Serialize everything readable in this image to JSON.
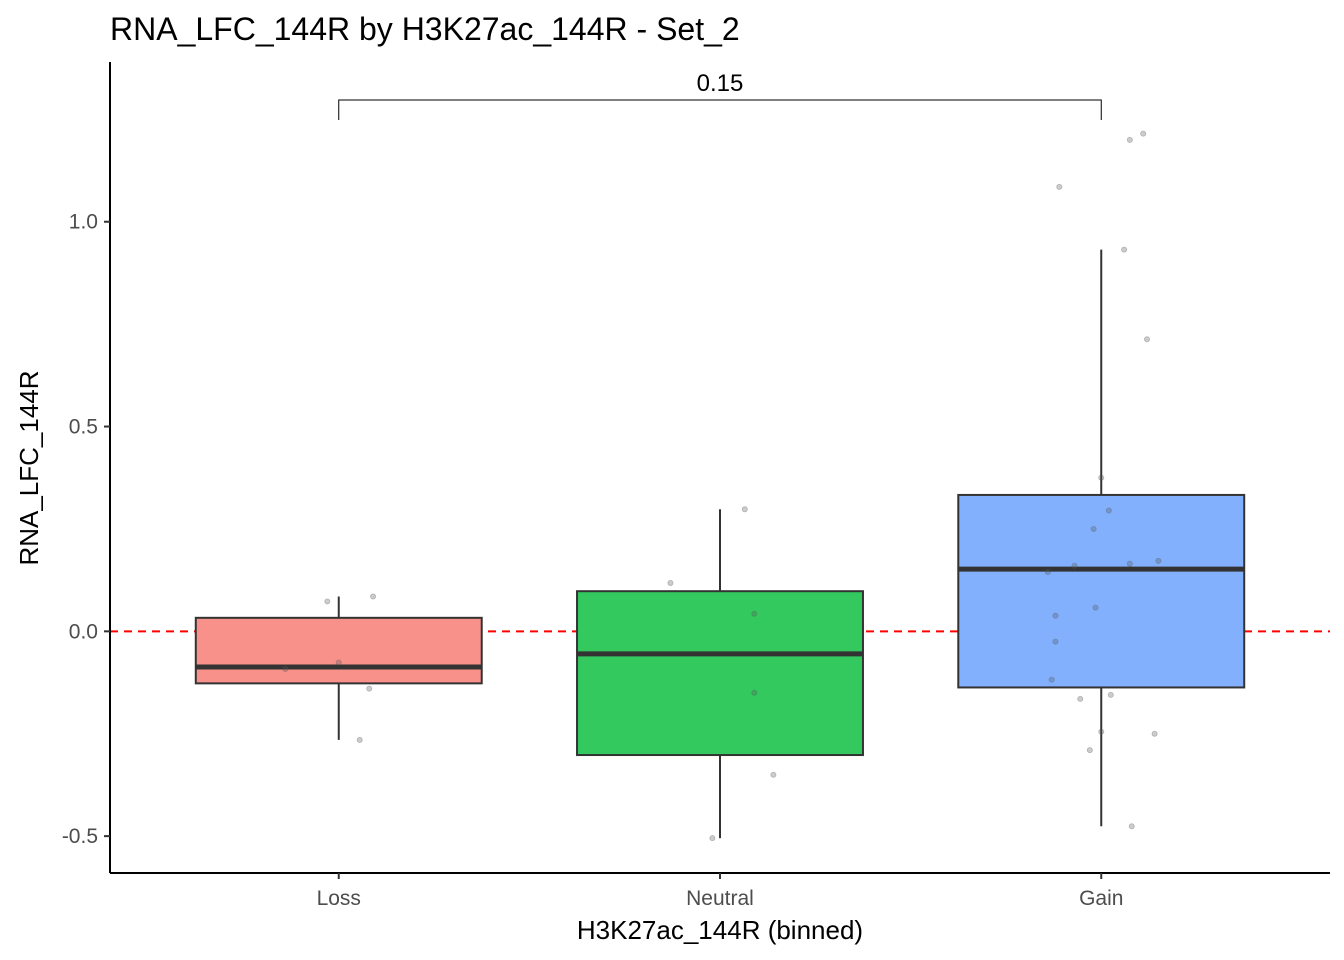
{
  "chart_data": {
    "type": "box",
    "title": "RNA_LFC_144R by H3K27ac_144R - Set_2",
    "xlabel": "H3K27ac_144R (binned)",
    "ylabel": "RNA_LFC_144R",
    "categories": [
      "Loss",
      "Neutral",
      "Gain"
    ],
    "ylim": [
      -0.59,
      1.39
    ],
    "yticks": [
      -0.5,
      0.0,
      0.5,
      1.0
    ],
    "ytick_labels": [
      "-0.5",
      "0.0",
      "0.5",
      "1.0"
    ],
    "grid": false,
    "reference_line": {
      "y": 0.0,
      "color": "#ff0000",
      "style": "dashed"
    },
    "boxes": [
      {
        "category": "Loss",
        "color": "#f8918a",
        "whisker_low": -0.265,
        "q1": -0.127,
        "median": -0.087,
        "q3": 0.033,
        "whisker_high": 0.085
      },
      {
        "category": "Neutral",
        "color": "#33c95f",
        "whisker_low": -0.505,
        "q1": -0.302,
        "median": -0.055,
        "q3": 0.098,
        "whisker_high": 0.298
      },
      {
        "category": "Gain",
        "color": "#82b0fd",
        "whisker_low": -0.476,
        "q1": -0.137,
        "median": 0.152,
        "q3": 0.333,
        "whisker_high": 0.932
      }
    ],
    "points": [
      {
        "category": "Loss",
        "jitter": -0.03,
        "y": 0.073
      },
      {
        "category": "Loss",
        "jitter": 0.09,
        "y": 0.085
      },
      {
        "category": "Loss",
        "jitter": -0.14,
        "y": -0.092
      },
      {
        "category": "Loss",
        "jitter": 0.0,
        "y": -0.076
      },
      {
        "category": "Loss",
        "jitter": 0.08,
        "y": -0.14
      },
      {
        "category": "Loss",
        "jitter": 0.055,
        "y": -0.265
      },
      {
        "category": "Neutral",
        "jitter": -0.13,
        "y": 0.118
      },
      {
        "category": "Neutral",
        "jitter": 0.065,
        "y": 0.298
      },
      {
        "category": "Neutral",
        "jitter": 0.09,
        "y": 0.043
      },
      {
        "category": "Neutral",
        "jitter": 0.09,
        "y": -0.15
      },
      {
        "category": "Neutral",
        "jitter": 0.14,
        "y": -0.35
      },
      {
        "category": "Neutral",
        "jitter": -0.02,
        "y": -0.505
      },
      {
        "category": "Gain",
        "jitter": 0.11,
        "y": 1.215
      },
      {
        "category": "Gain",
        "jitter": 0.075,
        "y": 1.2
      },
      {
        "category": "Gain",
        "jitter": -0.11,
        "y": 1.085
      },
      {
        "category": "Gain",
        "jitter": 0.06,
        "y": 0.932
      },
      {
        "category": "Gain",
        "jitter": 0.12,
        "y": 0.713
      },
      {
        "category": "Gain",
        "jitter": 0.0,
        "y": 0.375
      },
      {
        "category": "Gain",
        "jitter": 0.02,
        "y": 0.295
      },
      {
        "category": "Gain",
        "jitter": -0.02,
        "y": 0.25
      },
      {
        "category": "Gain",
        "jitter": 0.15,
        "y": 0.172
      },
      {
        "category": "Gain",
        "jitter": 0.075,
        "y": 0.165
      },
      {
        "category": "Gain",
        "jitter": -0.07,
        "y": 0.16
      },
      {
        "category": "Gain",
        "jitter": -0.14,
        "y": 0.145
      },
      {
        "category": "Gain",
        "jitter": -0.015,
        "y": 0.058
      },
      {
        "category": "Gain",
        "jitter": -0.12,
        "y": 0.038
      },
      {
        "category": "Gain",
        "jitter": -0.12,
        "y": -0.025
      },
      {
        "category": "Gain",
        "jitter": -0.13,
        "y": -0.118
      },
      {
        "category": "Gain",
        "jitter": 0.025,
        "y": -0.155
      },
      {
        "category": "Gain",
        "jitter": -0.055,
        "y": -0.165
      },
      {
        "category": "Gain",
        "jitter": 0.0,
        "y": -0.245
      },
      {
        "category": "Gain",
        "jitter": 0.14,
        "y": -0.25
      },
      {
        "category": "Gain",
        "jitter": -0.03,
        "y": -0.29
      },
      {
        "category": "Gain",
        "jitter": 0.08,
        "y": -0.476
      }
    ],
    "comparison": {
      "from": "Loss",
      "to": "Gain",
      "label": "0.15"
    }
  }
}
